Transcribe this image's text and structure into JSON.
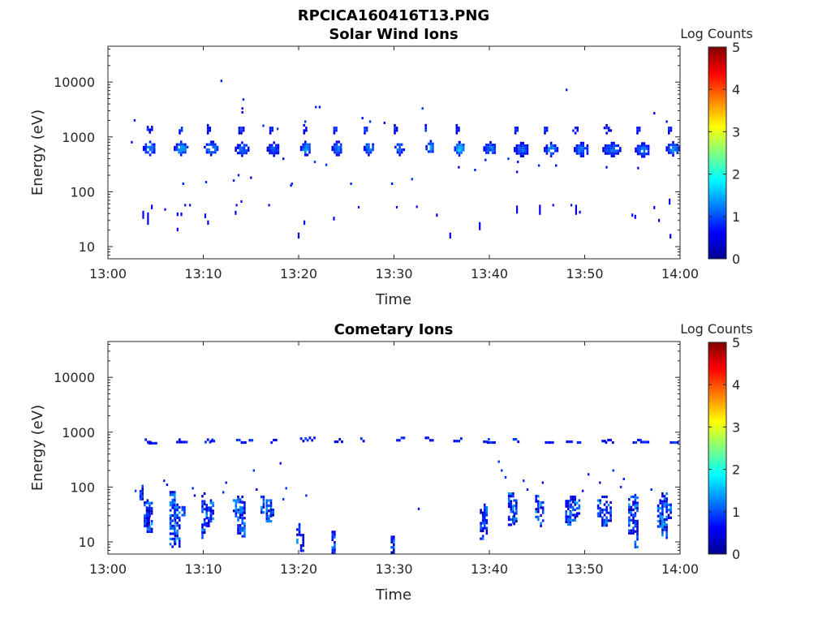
{
  "figure": {
    "title": "RPCICA160416T13.PNG"
  },
  "colormap": {
    "stops": [
      "#00008f",
      "#0000ff",
      "#0080ff",
      "#00ffff",
      "#80ff80",
      "#ffff00",
      "#ff8000",
      "#ff0000",
      "#800000"
    ]
  },
  "chart_data": [
    {
      "type": "heatmap",
      "title": "Solar Wind Ions",
      "xlabel": "Time",
      "ylabel": "Energy (eV)",
      "x_ticks": [
        "13:00",
        "13:10",
        "13:20",
        "13:30",
        "13:40",
        "13:50",
        "14:00"
      ],
      "x_range_minutes": [
        0,
        60
      ],
      "y_scale": "log",
      "y_ticks": [
        "10",
        "100",
        "1000",
        "10000"
      ],
      "y_range": [
        6,
        45000
      ],
      "colorbar": {
        "label": "Log Counts",
        "range": [
          0,
          5
        ],
        "ticks": [
          "0",
          "1",
          "2",
          "3",
          "4",
          "5"
        ]
      },
      "blobs": [
        {
          "t": 4.3,
          "e": 650,
          "dt": 1.3,
          "log_counts": 1.3
        },
        {
          "t": 7.6,
          "e": 650,
          "dt": 1.4,
          "log_counts": 1.4
        },
        {
          "t": 10.8,
          "e": 650,
          "dt": 1.5,
          "log_counts": 1.3
        },
        {
          "t": 14.0,
          "e": 630,
          "dt": 1.4,
          "log_counts": 1.1
        },
        {
          "t": 17.3,
          "e": 630,
          "dt": 1.3,
          "log_counts": 1.0
        },
        {
          "t": 20.7,
          "e": 650,
          "dt": 1.1,
          "log_counts": 1.4
        },
        {
          "t": 24.0,
          "e": 650,
          "dt": 1.1,
          "log_counts": 1.2
        },
        {
          "t": 27.3,
          "e": 650,
          "dt": 1.0,
          "log_counts": 1.3
        },
        {
          "t": 30.5,
          "e": 650,
          "dt": 0.9,
          "log_counts": 1.2
        },
        {
          "t": 33.7,
          "e": 670,
          "dt": 0.8,
          "log_counts": 1.4
        },
        {
          "t": 36.8,
          "e": 640,
          "dt": 1.0,
          "log_counts": 1.6
        },
        {
          "t": 40.0,
          "e": 640,
          "dt": 1.3,
          "log_counts": 1.2
        },
        {
          "t": 43.3,
          "e": 620,
          "dt": 1.5,
          "log_counts": 1.1
        },
        {
          "t": 46.4,
          "e": 620,
          "dt": 1.4,
          "log_counts": 1.3
        },
        {
          "t": 49.6,
          "e": 620,
          "dt": 1.5,
          "log_counts": 1.2
        },
        {
          "t": 52.8,
          "e": 620,
          "dt": 1.9,
          "log_counts": 1.1
        },
        {
          "t": 56.0,
          "e": 610,
          "dt": 1.5,
          "log_counts": 1.2
        },
        {
          "t": 59.2,
          "e": 640,
          "dt": 1.4,
          "log_counts": 1.3
        },
        {
          "t": 4.2,
          "e": 1500,
          "dt": 0.7,
          "log_counts": 0.9
        },
        {
          "t": 7.5,
          "e": 1450,
          "dt": 0.6,
          "log_counts": 0.9
        },
        {
          "t": 10.4,
          "e": 1450,
          "dt": 0.5,
          "log_counts": 0.8
        },
        {
          "t": 13.8,
          "e": 1450,
          "dt": 0.7,
          "log_counts": 0.9
        },
        {
          "t": 17.0,
          "e": 1450,
          "dt": 0.6,
          "log_counts": 0.8
        },
        {
          "t": 20.5,
          "e": 1450,
          "dt": 0.5,
          "log_counts": 0.8
        },
        {
          "t": 23.7,
          "e": 1450,
          "dt": 0.6,
          "log_counts": 0.9
        },
        {
          "t": 26.9,
          "e": 1450,
          "dt": 0.6,
          "log_counts": 0.9
        },
        {
          "t": 30.0,
          "e": 1450,
          "dt": 0.5,
          "log_counts": 0.8
        },
        {
          "t": 33.2,
          "e": 1450,
          "dt": 0.4,
          "log_counts": 0.9
        },
        {
          "t": 36.5,
          "e": 1450,
          "dt": 0.5,
          "log_counts": 0.8
        },
        {
          "t": 42.7,
          "e": 1450,
          "dt": 0.6,
          "log_counts": 0.8
        },
        {
          "t": 45.8,
          "e": 1450,
          "dt": 0.6,
          "log_counts": 0.8
        },
        {
          "t": 49.0,
          "e": 1450,
          "dt": 0.6,
          "log_counts": 0.8
        },
        {
          "t": 52.2,
          "e": 1450,
          "dt": 0.9,
          "log_counts": 0.8
        },
        {
          "t": 55.5,
          "e": 1450,
          "dt": 0.6,
          "log_counts": 0.8
        },
        {
          "t": 58.8,
          "e": 1450,
          "dt": 0.6,
          "log_counts": 0.9
        }
      ],
      "speckles": [
        [
          2.8,
          2000
        ],
        [
          2.5,
          800
        ],
        [
          11.9,
          10500
        ],
        [
          14.2,
          4800
        ],
        [
          14.1,
          3300
        ],
        [
          16.3,
          1600
        ],
        [
          21.8,
          3500
        ],
        [
          22.2,
          3500
        ],
        [
          26.7,
          2200
        ],
        [
          27.5,
          1900
        ],
        [
          33.0,
          3300
        ],
        [
          48.1,
          7200
        ],
        [
          57.3,
          2700
        ],
        [
          58.6,
          1900
        ],
        [
          43.0,
          350
        ],
        [
          45.2,
          300
        ],
        [
          47.0,
          300
        ],
        [
          42.0,
          400
        ],
        [
          52.3,
          280
        ],
        [
          55.6,
          270
        ],
        [
          38.5,
          250
        ],
        [
          40.1,
          580
        ],
        [
          46.0,
          650
        ],
        [
          31.9,
          170
        ],
        [
          29.8,
          140
        ],
        [
          25.5,
          140
        ],
        [
          21.7,
          350
        ],
        [
          22.9,
          310
        ],
        [
          19.2,
          130
        ],
        [
          18.4,
          400
        ],
        [
          15.0,
          180
        ],
        [
          13.2,
          160
        ],
        [
          10.3,
          150
        ],
        [
          7.9,
          140
        ],
        [
          13.7,
          200
        ],
        [
          39.6,
          380
        ],
        [
          36.8,
          280
        ],
        [
          42.9,
          230
        ],
        [
          20.7,
          1900
        ],
        [
          17.8,
          1400
        ],
        [
          29.0,
          1800
        ],
        [
          19.3,
          140
        ],
        [
          14.1,
          2800
        ],
        [
          36.9,
          800
        ],
        [
          48.8,
          1300
        ]
      ],
      "streaks": [
        {
          "t": 3.7,
          "e1": 32,
          "e2": 45
        },
        {
          "t": 4.2,
          "e1": 25,
          "e2": 42
        },
        {
          "t": 4.6,
          "e1": 48,
          "e2": 58
        },
        {
          "t": 7.3,
          "e1": 19,
          "e2": 22
        },
        {
          "t": 7.3,
          "e1": 36,
          "e2": 42
        },
        {
          "t": 7.7,
          "e1": 36,
          "e2": 42
        },
        {
          "t": 6.0,
          "e1": 45,
          "e2": 50
        },
        {
          "t": 8.1,
          "e1": 55,
          "e2": 60
        },
        {
          "t": 8.6,
          "e1": 55,
          "e2": 60
        },
        {
          "t": 10.2,
          "e1": 33,
          "e2": 40
        },
        {
          "t": 10.5,
          "e1": 25,
          "e2": 30
        },
        {
          "t": 13.4,
          "e1": 38,
          "e2": 45
        },
        {
          "t": 13.5,
          "e1": 55,
          "e2": 60
        },
        {
          "t": 14.0,
          "e1": 63,
          "e2": 70
        },
        {
          "t": 16.9,
          "e1": 55,
          "e2": 60
        },
        {
          "t": 20.0,
          "e1": 14,
          "e2": 18
        },
        {
          "t": 20.6,
          "e1": 25,
          "e2": 30
        },
        {
          "t": 23.7,
          "e1": 30,
          "e2": 35
        },
        {
          "t": 26.3,
          "e1": 50,
          "e2": 55
        },
        {
          "t": 30.3,
          "e1": 50,
          "e2": 55
        },
        {
          "t": 32.4,
          "e1": 52,
          "e2": 56
        },
        {
          "t": 34.5,
          "e1": 35,
          "e2": 40
        },
        {
          "t": 35.9,
          "e1": 14,
          "e2": 18
        },
        {
          "t": 39.0,
          "e1": 20,
          "e2": 28
        },
        {
          "t": 42.9,
          "e1": 40,
          "e2": 56
        },
        {
          "t": 45.3,
          "e1": 38,
          "e2": 58
        },
        {
          "t": 46.7,
          "e1": 55,
          "e2": 60
        },
        {
          "t": 48.6,
          "e1": 55,
          "e2": 60
        },
        {
          "t": 49.1,
          "e1": 38,
          "e2": 58
        },
        {
          "t": 49.5,
          "e1": 40,
          "e2": 45
        },
        {
          "t": 55.0,
          "e1": 35,
          "e2": 40
        },
        {
          "t": 55.3,
          "e1": 32,
          "e2": 38
        },
        {
          "t": 57.3,
          "e1": 48,
          "e2": 55
        },
        {
          "t": 57.8,
          "e1": 28,
          "e2": 32
        },
        {
          "t": 58.9,
          "e1": 58,
          "e2": 75
        },
        {
          "t": 59.0,
          "e1": 14,
          "e2": 17
        }
      ]
    },
    {
      "type": "heatmap",
      "title": "Cometary Ions",
      "xlabel": "Time",
      "ylabel": "Energy (eV)",
      "x_ticks": [
        "13:00",
        "13:10",
        "13:20",
        "13:30",
        "13:40",
        "13:50",
        "14:00"
      ],
      "x_range_minutes": [
        0,
        60
      ],
      "y_scale": "log",
      "y_ticks": [
        "10",
        "100",
        "1000",
        "10000"
      ],
      "y_range": [
        6,
        45000
      ],
      "colorbar": {
        "label": "Log Counts",
        "range": [
          0,
          5
        ],
        "ticks": [
          "0",
          "1",
          "2",
          "3",
          "4",
          "5"
        ]
      },
      "dashes": [
        {
          "t": 4.2,
          "e": 650
        },
        {
          "t": 4.7,
          "e": 620
        },
        {
          "t": 7.4,
          "e": 650
        },
        {
          "t": 7.9,
          "e": 650
        },
        {
          "t": 10.6,
          "e": 650
        },
        {
          "t": 11.0,
          "e": 680
        },
        {
          "t": 13.8,
          "e": 640
        },
        {
          "t": 14.3,
          "e": 640
        },
        {
          "t": 15.0,
          "e": 700
        },
        {
          "t": 17.4,
          "e": 640
        },
        {
          "t": 20.5,
          "e": 680
        },
        {
          "t": 21.3,
          "e": 700
        },
        {
          "t": 24.2,
          "e": 660
        },
        {
          "t": 30.7,
          "e": 700
        },
        {
          "t": 33.7,
          "e": 700
        },
        {
          "t": 36.7,
          "e": 680
        },
        {
          "t": 39.7,
          "e": 660
        },
        {
          "t": 40.2,
          "e": 640
        },
        {
          "t": 42.8,
          "e": 660
        },
        {
          "t": 46.3,
          "e": 640
        },
        {
          "t": 48.4,
          "e": 660
        },
        {
          "t": 49.4,
          "e": 640
        },
        {
          "t": 52.0,
          "e": 680
        },
        {
          "t": 52.6,
          "e": 640
        },
        {
          "t": 55.5,
          "e": 640
        },
        {
          "t": 56.3,
          "e": 650
        },
        {
          "t": 59.4,
          "e": 640
        },
        {
          "t": 26.7,
          "e": 680
        }
      ],
      "spikes": [
        {
          "t": 3.5,
          "e1": 60,
          "e2": 110,
          "w": 0.4
        },
        {
          "t": 4.0,
          "e1": 20,
          "e2": 55,
          "w": 0.5
        },
        {
          "t": 4.3,
          "e1": 15,
          "e2": 60,
          "w": 0.5
        },
        {
          "t": 6.7,
          "e1": 8,
          "e2": 85,
          "w": 0.5
        },
        {
          "t": 7.2,
          "e1": 8,
          "e2": 50,
          "w": 0.5
        },
        {
          "t": 7.9,
          "e1": 30,
          "e2": 45,
          "w": 0.4
        },
        {
          "t": 10.0,
          "e1": 12,
          "e2": 80,
          "w": 0.4
        },
        {
          "t": 10.5,
          "e1": 20,
          "e2": 55,
          "w": 0.5
        },
        {
          "t": 10.9,
          "e1": 25,
          "e2": 60,
          "w": 0.4
        },
        {
          "t": 13.3,
          "e1": 30,
          "e2": 60,
          "w": 0.4
        },
        {
          "t": 13.8,
          "e1": 15,
          "e2": 70,
          "w": 0.5
        },
        {
          "t": 14.2,
          "e1": 12,
          "e2": 55,
          "w": 0.4
        },
        {
          "t": 16.2,
          "e1": 35,
          "e2": 70,
          "w": 0.4
        },
        {
          "t": 16.8,
          "e1": 25,
          "e2": 60,
          "w": 0.5
        },
        {
          "t": 17.2,
          "e1": 30,
          "e2": 45,
          "w": 0.4
        },
        {
          "t": 19.9,
          "e1": 10,
          "e2": 22,
          "w": 0.3
        },
        {
          "t": 20.3,
          "e1": 6,
          "e2": 14,
          "w": 0.3
        },
        {
          "t": 23.6,
          "e1": 6,
          "e2": 16,
          "w": 0.3
        },
        {
          "t": 29.8,
          "e1": 6,
          "e2": 13,
          "w": 0.3
        },
        {
          "t": 39.2,
          "e1": 12,
          "e2": 40,
          "w": 0.4
        },
        {
          "t": 39.6,
          "e1": 15,
          "e2": 50,
          "w": 0.4
        },
        {
          "t": 42.2,
          "e1": 20,
          "e2": 80,
          "w": 0.5
        },
        {
          "t": 42.7,
          "e1": 22,
          "e2": 60,
          "w": 0.4
        },
        {
          "t": 45.0,
          "e1": 25,
          "e2": 80,
          "w": 0.4
        },
        {
          "t": 45.5,
          "e1": 18,
          "e2": 55,
          "w": 0.4
        },
        {
          "t": 48.2,
          "e1": 20,
          "e2": 65,
          "w": 0.5
        },
        {
          "t": 48.7,
          "e1": 25,
          "e2": 70,
          "w": 0.5
        },
        {
          "t": 49.3,
          "e1": 30,
          "e2": 60,
          "w": 0.4
        },
        {
          "t": 51.5,
          "e1": 30,
          "e2": 60,
          "w": 0.4
        },
        {
          "t": 52.0,
          "e1": 20,
          "e2": 70,
          "w": 0.5
        },
        {
          "t": 52.6,
          "e1": 25,
          "e2": 55,
          "w": 0.4
        },
        {
          "t": 54.8,
          "e1": 15,
          "e2": 70,
          "w": 0.5
        },
        {
          "t": 55.4,
          "e1": 8,
          "e2": 75,
          "w": 0.4
        },
        {
          "t": 57.8,
          "e1": 20,
          "e2": 60,
          "w": 0.4
        },
        {
          "t": 58.3,
          "e1": 12,
          "e2": 80,
          "w": 0.5
        },
        {
          "t": 58.9,
          "e1": 25,
          "e2": 50,
          "w": 0.4
        }
      ],
      "speckles": [
        [
          2.9,
          85
        ],
        [
          5.9,
          130
        ],
        [
          6.2,
          110
        ],
        [
          8.9,
          95
        ],
        [
          12.1,
          80
        ],
        [
          12.4,
          120
        ],
        [
          15.3,
          200
        ],
        [
          15.6,
          90
        ],
        [
          18.1,
          270
        ],
        [
          18.7,
          95
        ],
        [
          18.4,
          60
        ],
        [
          32.6,
          40
        ],
        [
          41.0,
          290
        ],
        [
          41.3,
          200
        ],
        [
          41.7,
          150
        ],
        [
          43.6,
          130
        ],
        [
          45.6,
          120
        ],
        [
          49.8,
          85
        ],
        [
          50.4,
          170
        ],
        [
          51.6,
          120
        ],
        [
          53.0,
          200
        ],
        [
          53.8,
          100
        ],
        [
          54.1,
          140
        ],
        [
          9.1,
          70
        ],
        [
          20.8,
          70
        ],
        [
          44.0,
          90
        ],
        [
          57.0,
          90
        ]
      ]
    }
  ]
}
